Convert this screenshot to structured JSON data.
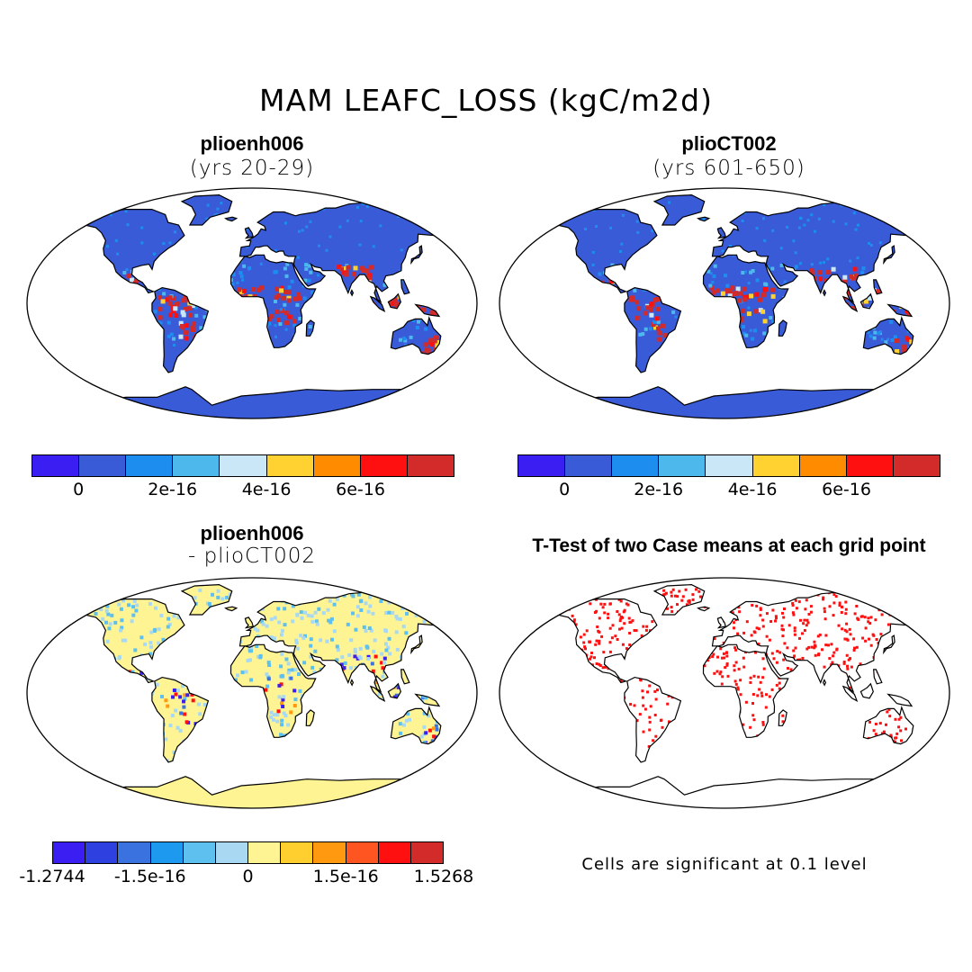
{
  "main_title": "MAM LEAFC_LOSS (kgC/m2d)",
  "panels": {
    "top_left": {
      "title": "plioenh006",
      "subtitle": "(yrs 20-29)"
    },
    "top_right": {
      "title": "plioCT002",
      "subtitle": "(yrs 601-650)"
    },
    "bottom_left": {
      "title": "plioenh006",
      "subtitle": "- plioCT002"
    },
    "bottom_right": {
      "title": "T-Test of two Case means at each grid point"
    }
  },
  "colorbars": {
    "abs": {
      "colors": [
        "#3b1ef2",
        "#3a5bd8",
        "#1d8ef0",
        "#4cb8ec",
        "#c9e7f7",
        "#ffd231",
        "#ff8c00",
        "#ff1010",
        "#d32a2a"
      ],
      "tick_labels": [
        "0",
        "2e-16",
        "4e-16",
        "6e-16"
      ]
    },
    "diff": {
      "colors": [
        "#3b1ef2",
        "#2e40e0",
        "#3a72e0",
        "#1d9af0",
        "#5ec0ee",
        "#a9d9f2",
        "#fff493",
        "#ffcf30",
        "#ff9a10",
        "#ff5520",
        "#ff1010",
        "#d32a2a"
      ],
      "tick_labels": [
        "-1.2744",
        "-1.5e-16",
        "0",
        "1.5e-16",
        "1.5268"
      ]
    }
  },
  "note": "Cells are significant at 0.1 level",
  "colors": {
    "land_base": "#3a5bd8",
    "diff_base": "#fff493",
    "signif": "#ff1010"
  }
}
